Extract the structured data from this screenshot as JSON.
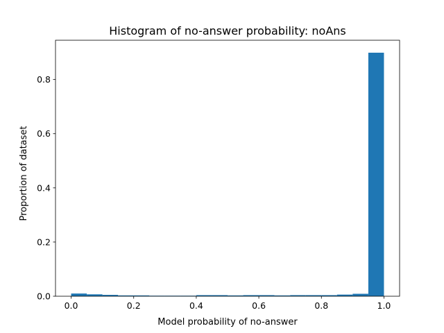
{
  "chart_data": {
    "type": "bar",
    "title": "Histogram of no-answer probability: noAns",
    "xlabel": "Model probability of no-answer",
    "ylabel": "Proportion of dataset",
    "xlim": [
      -0.05,
      1.05
    ],
    "ylim": [
      0,
      0.945
    ],
    "x_ticks": [
      "0.0",
      "0.2",
      "0.4",
      "0.6",
      "0.8",
      "1.0"
    ],
    "y_ticks": [
      "0.0",
      "0.2",
      "0.4",
      "0.6",
      "0.8"
    ],
    "x_tick_values": [
      0.0,
      0.2,
      0.4,
      0.6,
      0.8,
      1.0
    ],
    "y_tick_values": [
      0.0,
      0.2,
      0.4,
      0.6,
      0.8
    ],
    "bin_edges": [
      0.0,
      0.05,
      0.1,
      0.15,
      0.2,
      0.25,
      0.3,
      0.35,
      0.4,
      0.45,
      0.5,
      0.55,
      0.6,
      0.65,
      0.7,
      0.75,
      0.8,
      0.85,
      0.9,
      0.95,
      1.0
    ],
    "values": [
      0.01,
      0.007,
      0.005,
      0.003,
      0.003,
      0.002,
      0.002,
      0.002,
      0.004,
      0.004,
      0.003,
      0.004,
      0.004,
      0.003,
      0.004,
      0.004,
      0.004,
      0.006,
      0.009,
      0.899
    ],
    "bar_color": "#1f77b4",
    "grid": false,
    "legend": "none"
  }
}
